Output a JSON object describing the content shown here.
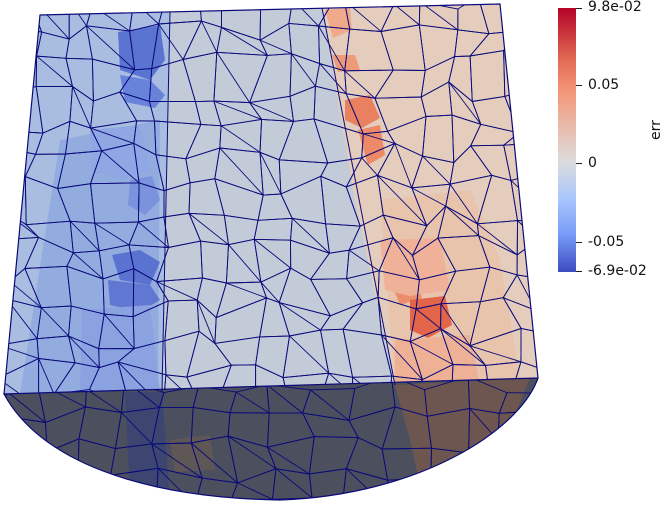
{
  "colorbar": {
    "title": "err",
    "max_label": "9.8e-02",
    "tick_1": "0.05",
    "tick_2": "0",
    "tick_3": "-0.05",
    "min_label": "-6.9e-02",
    "colormap": [
      "#b40426",
      "#e36c55",
      "#f4987a",
      "#dddcdc",
      "#aac7fd",
      "#7b9ff9",
      "#3b4cc0"
    ]
  },
  "colors": {
    "edge": "#0a0a7a",
    "neutral": "#c4ccd8",
    "shadow": "#4a4e5c",
    "negative": "#3b4cc0",
    "positive": "#e36c55"
  }
}
